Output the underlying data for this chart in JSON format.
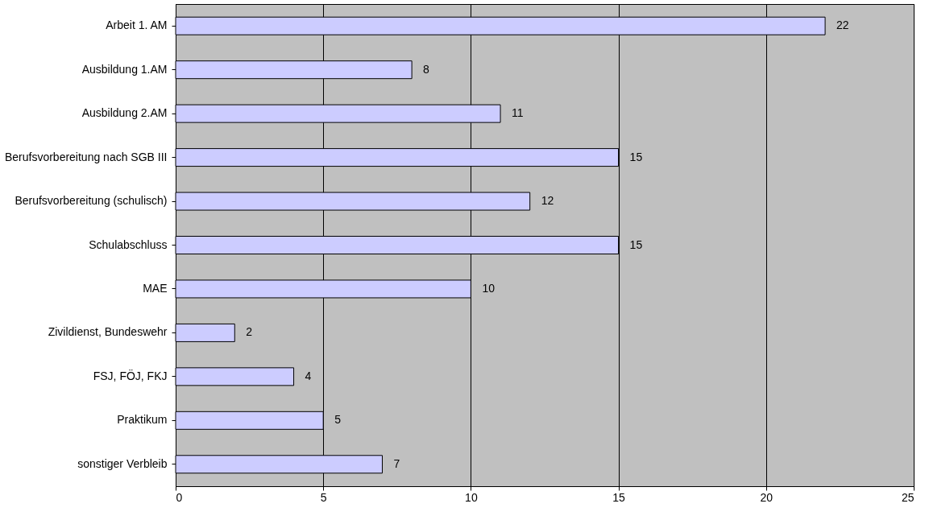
{
  "chart_data": {
    "type": "bar",
    "orientation": "horizontal",
    "categories": [
      "Arbeit 1. AM",
      "Ausbildung 1.AM",
      "Ausbildung 2.AM",
      "Berufsvorbereitung nach SGB III",
      "Berufsvorbereitung (schulisch)",
      "Schulabschluss",
      "MAE",
      "Zivildienst, Bundeswehr",
      "FSJ, FÖJ, FKJ",
      "Praktikum",
      "sonstiger Verbleib"
    ],
    "values": [
      22,
      8,
      11,
      15,
      12,
      15,
      10,
      2,
      4,
      5,
      7
    ],
    "color": "#ccccff",
    "xlim": [
      0,
      25
    ],
    "xticks": [
      0,
      5,
      10,
      15,
      20,
      25
    ],
    "grid": "x",
    "data_labels": true
  }
}
